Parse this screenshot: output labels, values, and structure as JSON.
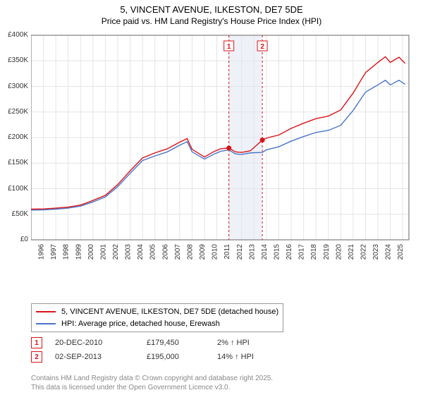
{
  "title_line1": "5, VINCENT AVENUE, ILKESTON, DE7 5DE",
  "title_line2": "Price paid vs. HM Land Registry's House Price Index (HPI)",
  "chart": {
    "type": "line",
    "background_color": "#ffffff",
    "grid_color": "#e4e4e4",
    "axis_color": "#666666",
    "highlight_band_color": "#eef2f8",
    "ylim": [
      0,
      400000
    ],
    "ytick_step": 50000,
    "y_labels": [
      "£0",
      "£50K",
      "£100K",
      "£150K",
      "£200K",
      "£250K",
      "£300K",
      "£350K",
      "£400K"
    ],
    "x_years": [
      1995,
      1996,
      1997,
      1998,
      1999,
      2000,
      2001,
      2002,
      2003,
      2004,
      2005,
      2006,
      2007,
      2008,
      2009,
      2010,
      2011,
      2012,
      2013,
      2014,
      2015,
      2016,
      2017,
      2018,
      2019,
      2020,
      2021,
      2022,
      2023,
      2024,
      2025
    ],
    "xlim": [
      1995,
      2025.5
    ],
    "highlight_band": {
      "start": 2010.97,
      "end": 2013.67
    },
    "series_property": {
      "label": "5, VINCENT AVENUE, ILKESTON, DE7 5DE (detached house)",
      "color": "#d9141a",
      "line_width": 1.4,
      "points": [
        [
          1995,
          60000
        ],
        [
          1996,
          60500
        ],
        [
          1997,
          62000
        ],
        [
          1998,
          64000
        ],
        [
          1999,
          68000
        ],
        [
          2000,
          77000
        ],
        [
          2001,
          87000
        ],
        [
          2002,
          108000
        ],
        [
          2003,
          135000
        ],
        [
          2004,
          160000
        ],
        [
          2005,
          170000
        ],
        [
          2006,
          178000
        ],
        [
          2007,
          191000
        ],
        [
          2007.6,
          198000
        ],
        [
          2008,
          177000
        ],
        [
          2009,
          162000
        ],
        [
          2009.8,
          173000
        ],
        [
          2010.3,
          178000
        ],
        [
          2010.97,
          179450
        ],
        [
          2011.5,
          172000
        ],
        [
          2012,
          171000
        ],
        [
          2012.7,
          174000
        ],
        [
          2013.67,
          195000
        ],
        [
          2014,
          199000
        ],
        [
          2015,
          205000
        ],
        [
          2016,
          218000
        ],
        [
          2017,
          228000
        ],
        [
          2018,
          237000
        ],
        [
          2019,
          242000
        ],
        [
          2020,
          254000
        ],
        [
          2021,
          287000
        ],
        [
          2022,
          327000
        ],
        [
          2023,
          347000
        ],
        [
          2023.6,
          358000
        ],
        [
          2024,
          347000
        ],
        [
          2024.7,
          357000
        ],
        [
          2025.2,
          345000
        ]
      ]
    },
    "series_hpi": {
      "label": "HPI: Average price, detached house, Erewash",
      "color": "#4a74c9",
      "line_width": 1.4,
      "points": [
        [
          1995,
          58000
        ],
        [
          1996,
          58500
        ],
        [
          1997,
          60000
        ],
        [
          1998,
          62000
        ],
        [
          1999,
          66000
        ],
        [
          2000,
          74000
        ],
        [
          2001,
          84000
        ],
        [
          2002,
          104000
        ],
        [
          2003,
          130000
        ],
        [
          2004,
          155000
        ],
        [
          2005,
          164000
        ],
        [
          2006,
          172000
        ],
        [
          2007,
          185000
        ],
        [
          2007.6,
          192000
        ],
        [
          2008,
          172000
        ],
        [
          2009,
          158000
        ],
        [
          2009.8,
          168000
        ],
        [
          2010.3,
          173000
        ],
        [
          2010.97,
          176000
        ],
        [
          2011.5,
          168000
        ],
        [
          2012,
          167000
        ],
        [
          2012.7,
          170000
        ],
        [
          2013.67,
          171000
        ],
        [
          2014,
          176000
        ],
        [
          2015,
          182000
        ],
        [
          2016,
          193000
        ],
        [
          2017,
          202000
        ],
        [
          2018,
          210000
        ],
        [
          2019,
          214000
        ],
        [
          2020,
          224000
        ],
        [
          2021,
          253000
        ],
        [
          2022,
          289000
        ],
        [
          2023,
          303000
        ],
        [
          2023.6,
          312000
        ],
        [
          2024,
          303000
        ],
        [
          2024.7,
          312000
        ],
        [
          2025.2,
          304000
        ]
      ]
    },
    "sale_markers": [
      {
        "n": "1",
        "x": 2010.97,
        "y": 179450,
        "box_color": "#d9141a"
      },
      {
        "n": "2",
        "x": 2013.67,
        "y": 195000,
        "box_color": "#d9141a"
      }
    ],
    "marker_dot_color": "#d9141a",
    "marker_dot_radius": 3.5,
    "label_fontsize": 10,
    "title_fontsize": 13
  },
  "legend": {
    "items": [
      {
        "color": "#d9141a",
        "text": "5, VINCENT AVENUE, ILKESTON, DE7 5DE (detached house)"
      },
      {
        "color": "#4a74c9",
        "text": "HPI: Average price, detached house, Erewash"
      }
    ]
  },
  "transactions": [
    {
      "n": "1",
      "box_color": "#d9141a",
      "date": "20-DEC-2010",
      "price": "£179,450",
      "diff": "2% ↑ HPI"
    },
    {
      "n": "2",
      "box_color": "#d9141a",
      "date": "02-SEP-2013",
      "price": "£195,000",
      "diff": "14% ↑ HPI"
    }
  ],
  "footer_line1": "Contains HM Land Registry data © Crown copyright and database right 2025.",
  "footer_line2": "This data is licensed under the Open Government Licence v3.0."
}
